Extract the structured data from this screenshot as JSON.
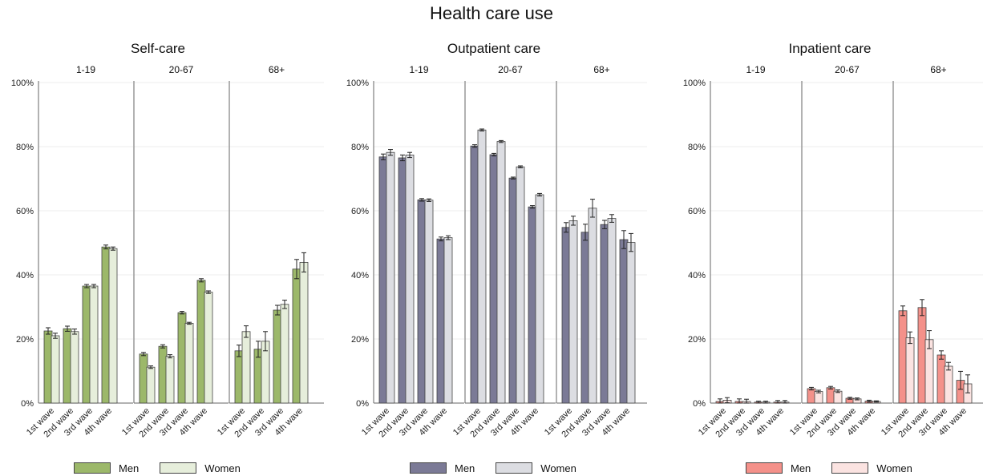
{
  "main_title": "Health care use",
  "chart_data": [
    {
      "type": "bar",
      "title": "Self-care",
      "ylim": [
        0,
        100
      ],
      "yticks": [
        "0%",
        "20%",
        "40%",
        "60%",
        "80%",
        "100%"
      ],
      "facets": [
        "1-19",
        "20-67",
        "68+"
      ],
      "categories": [
        "1st wave",
        "2nd wave",
        "3rd wave",
        "4th wave"
      ],
      "colors": {
        "men": "#9cb86a",
        "women": "#e6eedb"
      },
      "series": [
        {
          "name": "Men",
          "values": [
            [
              22.5,
              23.2,
              36.5,
              48.7
            ],
            [
              15.3,
              17.7,
              28.2,
              38.3
            ],
            [
              16.3,
              16.8,
              29.0,
              41.8
            ]
          ],
          "ci": [
            [
              1.0,
              0.8,
              0.5,
              0.6
            ],
            [
              0.5,
              0.5,
              0.4,
              0.5
            ],
            [
              1.8,
              2.5,
              1.5,
              3.0
            ]
          ]
        },
        {
          "name": "Women",
          "values": [
            [
              21.0,
              22.3,
              36.5,
              48.2
            ],
            [
              11.2,
              14.6,
              24.9,
              34.6
            ],
            [
              22.3,
              19.3,
              30.8,
              43.9
            ]
          ],
          "ci": [
            [
              0.8,
              0.8,
              0.5,
              0.5
            ],
            [
              0.4,
              0.5,
              0.3,
              0.4
            ],
            [
              1.8,
              3.0,
              1.3,
              3.0
            ]
          ]
        }
      ]
    },
    {
      "type": "bar",
      "title": "Outpatient care",
      "ylim": [
        0,
        100
      ],
      "yticks": [
        "0%",
        "20%",
        "40%",
        "60%",
        "80%",
        "100%"
      ],
      "facets": [
        "1-19",
        "20-67",
        "68+"
      ],
      "categories": [
        "1st wave",
        "2nd wave",
        "3rd wave",
        "4th wave"
      ],
      "colors": {
        "men": "#7b7a96",
        "women": "#dcdde2"
      },
      "series": [
        {
          "name": "Men",
          "values": [
            [
              76.8,
              76.5,
              63.4,
              51.2
            ],
            [
              80.2,
              77.5,
              70.2,
              61.2
            ],
            [
              54.8,
              53.3,
              55.7,
              51.0
            ]
          ],
          "ci": [
            [
              0.9,
              0.9,
              0.4,
              0.6
            ],
            [
              0.4,
              0.4,
              0.3,
              0.4
            ],
            [
              1.5,
              2.5,
              1.3,
              2.8
            ]
          ]
        },
        {
          "name": "Women",
          "values": [
            [
              78.2,
              77.4,
              63.3,
              51.6
            ],
            [
              85.2,
              81.6,
              73.7,
              65.0
            ],
            [
              56.9,
              60.8,
              57.6,
              50.1
            ]
          ],
          "ci": [
            [
              0.9,
              0.8,
              0.4,
              0.6
            ],
            [
              0.3,
              0.3,
              0.3,
              0.4
            ],
            [
              1.4,
              2.8,
              1.2,
              2.8
            ]
          ]
        }
      ]
    },
    {
      "type": "bar",
      "title": "Inpatient care",
      "ylim": [
        0,
        100
      ],
      "yticks": [
        "0%",
        "20%",
        "40%",
        "60%",
        "80%",
        "100%"
      ],
      "facets": [
        "1-19",
        "20-67",
        "68+"
      ],
      "categories": [
        "1st wave",
        "2nd wave",
        "3rd wave",
        "4th wave"
      ],
      "colors": {
        "men": "#f4918a",
        "women": "#fbe3e1"
      },
      "series": [
        {
          "name": "Men",
          "values": [
            [
              0.5,
              0.5,
              0.3,
              0.3
            ],
            [
              4.5,
              4.8,
              1.5,
              0.6
            ],
            [
              28.8,
              29.8,
              15.0,
              7.1
            ]
          ],
          "ci": [
            [
              0.8,
              0.8,
              0.3,
              0.5
            ],
            [
              0.4,
              0.4,
              0.3,
              0.3
            ],
            [
              1.5,
              2.5,
              1.3,
              2.8
            ]
          ]
        },
        {
          "name": "Women",
          "values": [
            [
              0.9,
              0.5,
              0.3,
              0.3
            ],
            [
              3.6,
              3.7,
              1.3,
              0.5
            ],
            [
              20.4,
              19.8,
              11.5,
              6.0
            ]
          ],
          "ci": [
            [
              0.8,
              0.7,
              0.3,
              0.5
            ],
            [
              0.4,
              0.4,
              0.3,
              0.2
            ],
            [
              1.8,
              2.8,
              1.2,
              2.8
            ]
          ]
        }
      ]
    }
  ]
}
